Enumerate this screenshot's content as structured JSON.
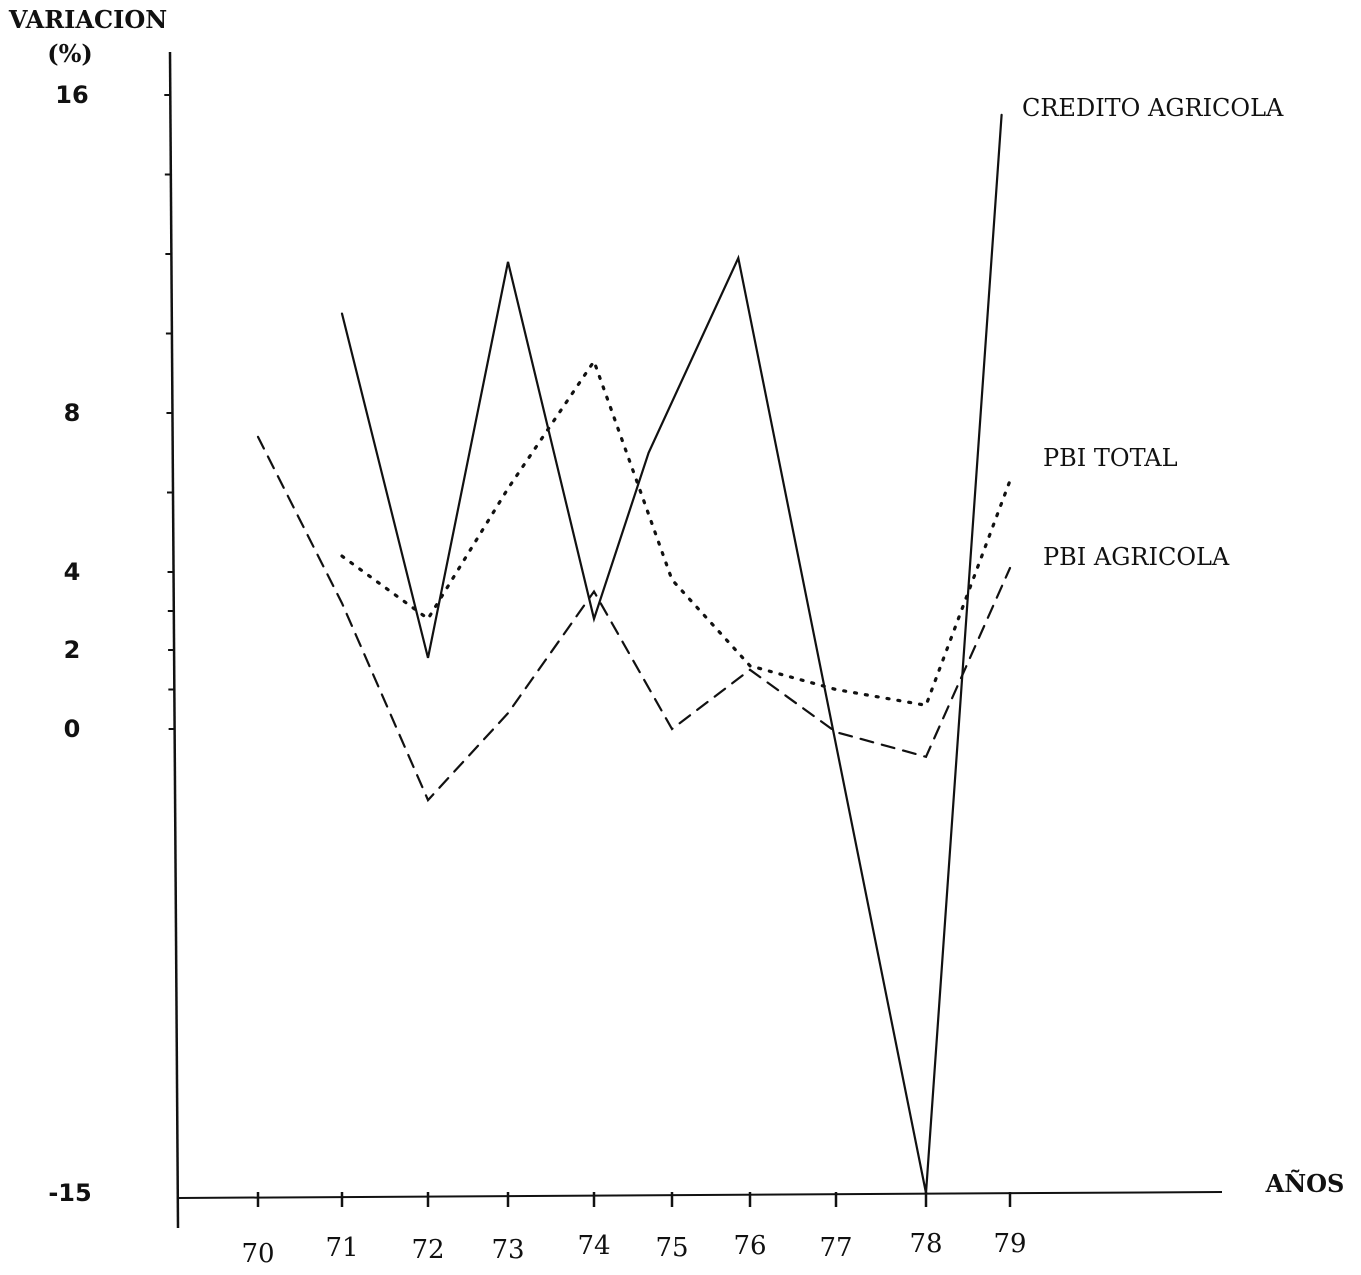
{
  "chart_data": {
    "type": "line",
    "title": "",
    "ylabel_line1": "VARIACION",
    "ylabel_line2": "(%)",
    "xlabel": "AÑOS",
    "y_ticks": [
      {
        "value": 16,
        "label": "16"
      },
      {
        "value": 8,
        "label": "8"
      },
      {
        "value": 4,
        "label": "4"
      },
      {
        "value": 2,
        "label": "2"
      },
      {
        "value": 0,
        "label": "0"
      },
      {
        "value": -15,
        "label": "-15"
      }
    ],
    "x_ticks": [
      "70",
      "71",
      "72",
      "73",
      "74",
      "75",
      "76",
      "77",
      "78",
      "79"
    ],
    "grid": false,
    "series": [
      {
        "name": "CREDITO AGRICOLA",
        "style": "solid",
        "color": "#111111",
        "points": [
          {
            "x": 71,
            "y": 10.5
          },
          {
            "x": 72,
            "y": 1.8
          },
          {
            "x": 73,
            "y": 11.8
          },
          {
            "x": 74,
            "y": 2.8
          },
          {
            "x": 74.7,
            "y": 7.0
          },
          {
            "x": 75.85,
            "y": 11.9
          },
          {
            "x": 78,
            "y": -15.0
          },
          {
            "x": 78.9,
            "y": 15.5
          }
        ]
      },
      {
        "name": "PBI TOTAL",
        "style": "dotted",
        "color": "#111111",
        "points": [
          {
            "x": 71,
            "y": 4.4
          },
          {
            "x": 72,
            "y": 2.8
          },
          {
            "x": 73,
            "y": 6.1
          },
          {
            "x": 74,
            "y": 9.3
          },
          {
            "x": 75,
            "y": 3.8
          },
          {
            "x": 76,
            "y": 1.6
          },
          {
            "x": 77,
            "y": 1.0
          },
          {
            "x": 78,
            "y": 0.6
          },
          {
            "x": 79,
            "y": 6.3
          }
        ]
      },
      {
        "name": "PBI AGRICOLA",
        "style": "dashed",
        "color": "#111111",
        "points": [
          {
            "x": 70,
            "y": 7.4
          },
          {
            "x": 71,
            "y": 3.2
          },
          {
            "x": 72,
            "y": -2.3
          },
          {
            "x": 73,
            "y": 0.4
          },
          {
            "x": 74,
            "y": 3.5
          },
          {
            "x": 75,
            "y": 0.0
          },
          {
            "x": 76,
            "y": 1.5
          },
          {
            "x": 77,
            "y": -0.1
          },
          {
            "x": 78,
            "y": -0.9
          },
          {
            "x": 79,
            "y": 4.1
          }
        ]
      }
    ]
  }
}
